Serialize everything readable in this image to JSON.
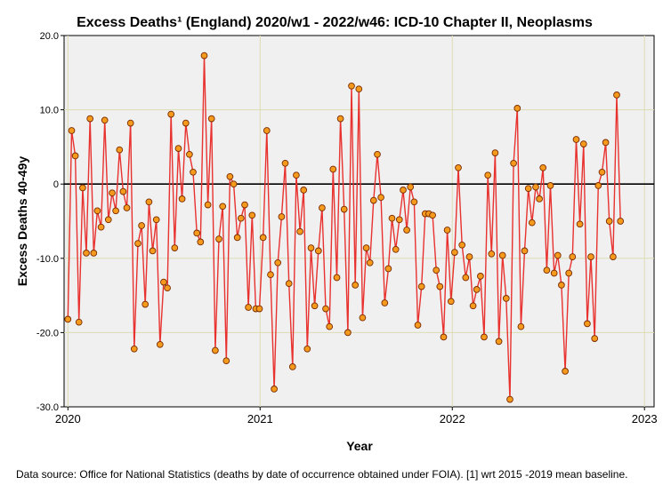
{
  "chart_data": {
    "type": "line",
    "title": "Excess Deaths¹ (England) 2020/w1 - 2022/w46: ICD-10 Chapter II, Neoplasms",
    "xlabel": "Year",
    "ylabel": "Excess Deaths 40-49y",
    "xlim": [
      2019.98,
      2023.05
    ],
    "ylim": [
      -30,
      20
    ],
    "yticks": [
      20,
      10,
      0,
      -10,
      -20,
      -30
    ],
    "ytick_labels": [
      "20.0",
      "10.0",
      "0",
      "-10.0",
      "-20.0",
      "-30.0"
    ],
    "xticks": [
      2020,
      2021,
      2022,
      2023
    ],
    "xtick_labels": [
      "2020",
      "2021",
      "2022",
      "2023"
    ],
    "reference_line_y": 0,
    "grid": true,
    "colors": {
      "line": "#e8322f",
      "marker_fill": "#f49a1c",
      "marker_edge": "#7a2a00",
      "plot_bg": "#f0f0f0",
      "grid": "#dcdcb4"
    },
    "series": [
      {
        "name": "Excess Deaths 40-49y",
        "start_week": "2020/w1",
        "end_week": "2022/w46",
        "values": [
          -18.2,
          7.2,
          3.8,
          -18.6,
          -0.5,
          -9.3,
          8.8,
          -9.3,
          -3.6,
          -5.8,
          8.6,
          -4.8,
          -1.2,
          -3.6,
          4.6,
          -1.0,
          -3.2,
          8.2,
          -22.2,
          -8.0,
          -5.6,
          -16.2,
          -2.4,
          -9.0,
          -4.8,
          -21.6,
          -13.2,
          -14.0,
          9.4,
          -8.6,
          4.8,
          -2.0,
          8.2,
          4.0,
          1.6,
          -6.6,
          -7.8,
          17.3,
          -2.8,
          8.8,
          -22.4,
          -7.4,
          -3.0,
          -23.8,
          1.0,
          0.0,
          -7.2,
          -4.6,
          -2.8,
          -16.6,
          -4.2,
          -16.8,
          -16.8,
          -7.2,
          7.2,
          -12.2,
          -27.6,
          -10.6,
          -4.4,
          2.8,
          -13.4,
          -24.6,
          1.2,
          -6.4,
          -0.8,
          -22.2,
          -8.6,
          -16.4,
          -9.0,
          -3.2,
          -16.8,
          -19.2,
          2.0,
          -12.6,
          8.8,
          -3.4,
          -20.0,
          13.2,
          -13.6,
          12.8,
          -18.0,
          -8.6,
          -10.6,
          -2.2,
          4.0,
          -1.8,
          -16.0,
          -11.4,
          -4.6,
          -8.8,
          -4.8,
          -0.8,
          -6.2,
          -0.4,
          -2.4,
          -19.0,
          -13.8,
          -4.0,
          -4.0,
          -4.2,
          -11.6,
          -13.8,
          -20.6,
          -6.2,
          -15.8,
          -9.2,
          2.2,
          -8.2,
          -12.6,
          -9.8,
          -16.4,
          -14.2,
          -12.4,
          -20.6,
          1.2,
          -9.4,
          4.2,
          -21.2,
          -9.6,
          -15.4,
          -29.0,
          2.8,
          10.2,
          -19.2,
          -9.0,
          -0.6,
          -5.2,
          -0.4,
          -2.0,
          2.2,
          -11.6,
          -0.2,
          -12.0,
          -9.6,
          -13.6,
          -25.2,
          -12.0,
          -9.8,
          6.0,
          -5.4,
          5.4,
          -18.8,
          -9.8,
          -20.8,
          -0.2,
          1.6,
          5.6,
          -5.0,
          -9.8,
          12.0,
          -5.0
        ]
      }
    ]
  },
  "footnote": "Data source: Office for National Statistics (deaths by date of occurrence obtained under FOIA). [1] wrt 2015 -2019 mean baseline."
}
